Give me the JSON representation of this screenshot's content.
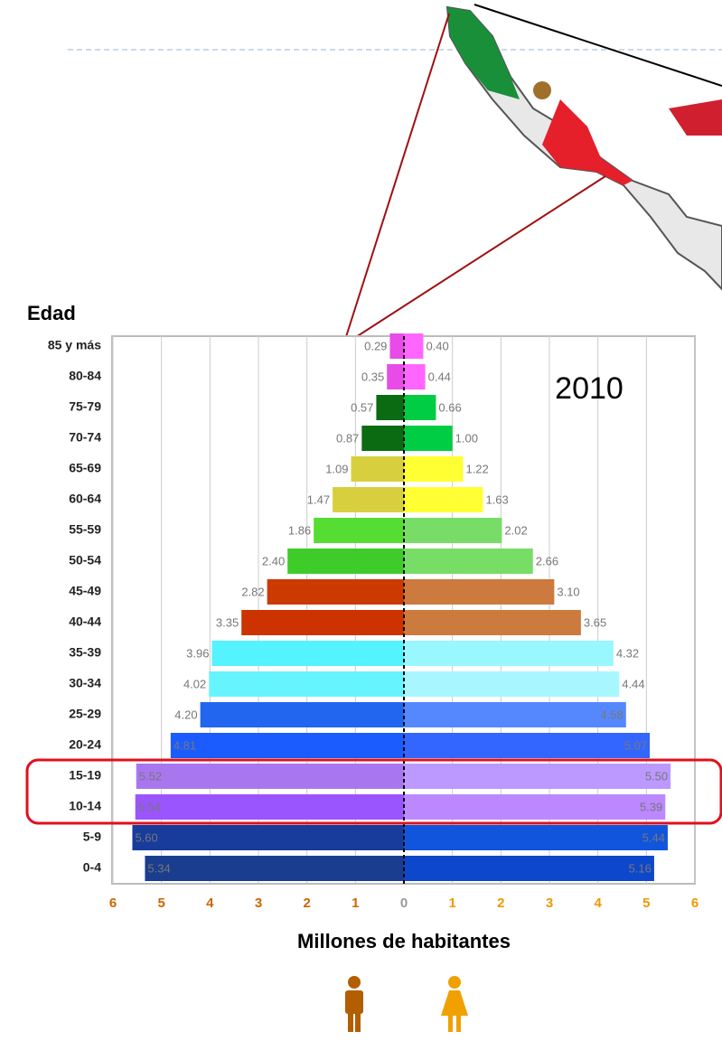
{
  "chart_data": {
    "type": "pyramid",
    "y_label": "Edad",
    "annotation": "2010",
    "x_label": "Millones de habitantes",
    "categories": [
      "85 y más",
      "80-84",
      "75-79",
      "70-74",
      "65-69",
      "60-64",
      "55-59",
      "50-54",
      "45-49",
      "40-44",
      "35-39",
      "30-34",
      "25-29",
      "20-24",
      "15-19",
      "10-14",
      "5-9",
      "0-4"
    ],
    "series": [
      {
        "values": [
          0.29,
          0.35,
          0.57,
          0.87,
          1.09,
          1.47,
          1.86,
          2.4,
          2.82,
          3.35,
          3.96,
          4.02,
          4.2,
          4.81,
          5.52,
          5.54,
          5.6,
          5.34
        ],
        "value_labels": [
          "0.29",
          "0.35",
          "0.57",
          "0.87",
          "1.09",
          "1.47",
          "1.86",
          "2.40",
          "2.82",
          "3.35",
          "3.96",
          "4.02",
          "4.20",
          "4.81",
          "5.52",
          "5.54",
          "5.60",
          "5.34"
        ],
        "colors": [
          "#e84be8",
          "#e84be8",
          "#0b6b12",
          "#0b6b12",
          "#d8cf3e",
          "#d8cf3e",
          "#55dd33",
          "#3fcc2a",
          "#cc3a00",
          "#cc3300",
          "#55f2ff",
          "#66f4ff",
          "#2266f0",
          "#1a5cff",
          "#a877f0",
          "#9a55ff",
          "#173c9c",
          "#1a3d8f"
        ],
        "label_color": "#cc6600"
      },
      {
        "values": [
          0.4,
          0.44,
          0.66,
          1.0,
          1.22,
          1.63,
          2.02,
          2.66,
          3.1,
          3.65,
          4.32,
          4.44,
          4.58,
          5.07,
          5.5,
          5.39,
          5.44,
          5.16
        ],
        "value_labels": [
          "0.40",
          "0.44",
          "0.66",
          "1.00",
          "1.22",
          "1.63",
          "2.02",
          "2.66",
          "3.10",
          "3.65",
          "4.32",
          "4.44",
          "4.58",
          "5.07",
          "5.50",
          "5.39",
          "5.44",
          "5.16"
        ],
        "colors": [
          "#ff66ff",
          "#ff66ff",
          "#00cc44",
          "#00cc44",
          "#ffff33",
          "#ffff33",
          "#77dd66",
          "#77dd66",
          "#cc7a3d",
          "#cc7a3d",
          "#99f7ff",
          "#a8f7ff",
          "#5588ff",
          "#3366ff",
          "#bb99ff",
          "#bb88ff",
          "#1155dd",
          "#0d47cc"
        ],
        "label_color": "#ee9900"
      }
    ],
    "xlim": [
      0,
      6
    ],
    "xticks": [
      0,
      1,
      2,
      3,
      4,
      5,
      6
    ],
    "grid": true
  }
}
